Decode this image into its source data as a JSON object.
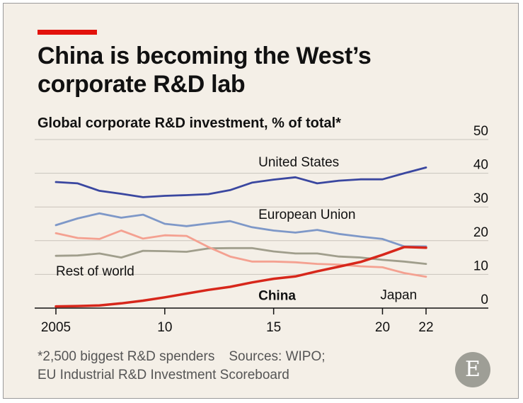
{
  "headline": {
    "line1": "China is becoming the West’s",
    "line2": "corporate R&D lab"
  },
  "chart_data": {
    "type": "line",
    "title": "Global corporate R&D investment, % of total*",
    "xlabel": "",
    "ylabel": "",
    "xlim": [
      2005,
      2022
    ],
    "ylim": [
      0,
      50
    ],
    "y_ticks": [
      0,
      10,
      20,
      30,
      40,
      50
    ],
    "x_ticks": [
      {
        "value": 2005,
        "label": "2005"
      },
      {
        "value": 2010,
        "label": "10"
      },
      {
        "value": 2015,
        "label": "15"
      },
      {
        "value": 2020,
        "label": "20"
      },
      {
        "value": 2022,
        "label": "22"
      }
    ],
    "y_axis_side": "right",
    "grid": "horizontal",
    "x": [
      2005,
      2006,
      2007,
      2008,
      2009,
      2010,
      2011,
      2012,
      2013,
      2014,
      2015,
      2016,
      2017,
      2018,
      2019,
      2020,
      2021,
      2022
    ],
    "series": [
      {
        "name": "United States",
        "color": "#3a47a0",
        "values": [
          37.4,
          37.0,
          34.8,
          33.9,
          32.9,
          33.3,
          33.5,
          33.8,
          35.0,
          37.2,
          38.1,
          38.8,
          37.0,
          37.8,
          38.2,
          38.2,
          40.0,
          41.7
        ],
        "label_x": 2014.3,
        "label_y": 42
      },
      {
        "name": "European Union",
        "color": "#7e98c8",
        "values": [
          24.6,
          26.6,
          28.1,
          26.8,
          27.7,
          25.0,
          24.3,
          25.1,
          25.8,
          24.0,
          23.0,
          22.4,
          23.2,
          22.0,
          21.2,
          20.5,
          18.3,
          18.3
        ],
        "label_x": 2014.3,
        "label_y": 26.5
      },
      {
        "name": "Rest of world",
        "color": "#a09e8c",
        "values": [
          15.5,
          15.6,
          16.2,
          15.0,
          17.0,
          16.9,
          16.7,
          17.7,
          17.8,
          17.8,
          16.8,
          16.2,
          16.2,
          15.3,
          15.0,
          14.3,
          13.8,
          13.1
        ],
        "label_x": 2005,
        "label_y": 9.7
      },
      {
        "name": "Japan",
        "color": "#f4a191",
        "values": [
          22.2,
          20.8,
          20.5,
          23.0,
          20.6,
          21.6,
          21.4,
          18.1,
          15.3,
          13.8,
          13.8,
          13.6,
          13.1,
          12.9,
          12.4,
          12.1,
          10.4,
          9.3
        ],
        "label_x": 2019.9,
        "label_y": 2.6
      },
      {
        "name": "China",
        "color": "#d7271b",
        "bold": true,
        "values": [
          0.5,
          0.6,
          0.8,
          1.4,
          2.2,
          3.2,
          4.3,
          5.4,
          6.3,
          7.6,
          8.7,
          9.4,
          10.9,
          12.3,
          13.7,
          15.8,
          18.1,
          17.9
        ],
        "label_x": 2014.3,
        "label_y": 2.4
      }
    ]
  },
  "footnote": {
    "note": "*2,500 biggest R&D spenders",
    "sources_line1": "Sources: WIPO;",
    "sources_line2": "EU Industrial R&D Investment Scoreboard"
  },
  "logo": {
    "letter": "E"
  }
}
